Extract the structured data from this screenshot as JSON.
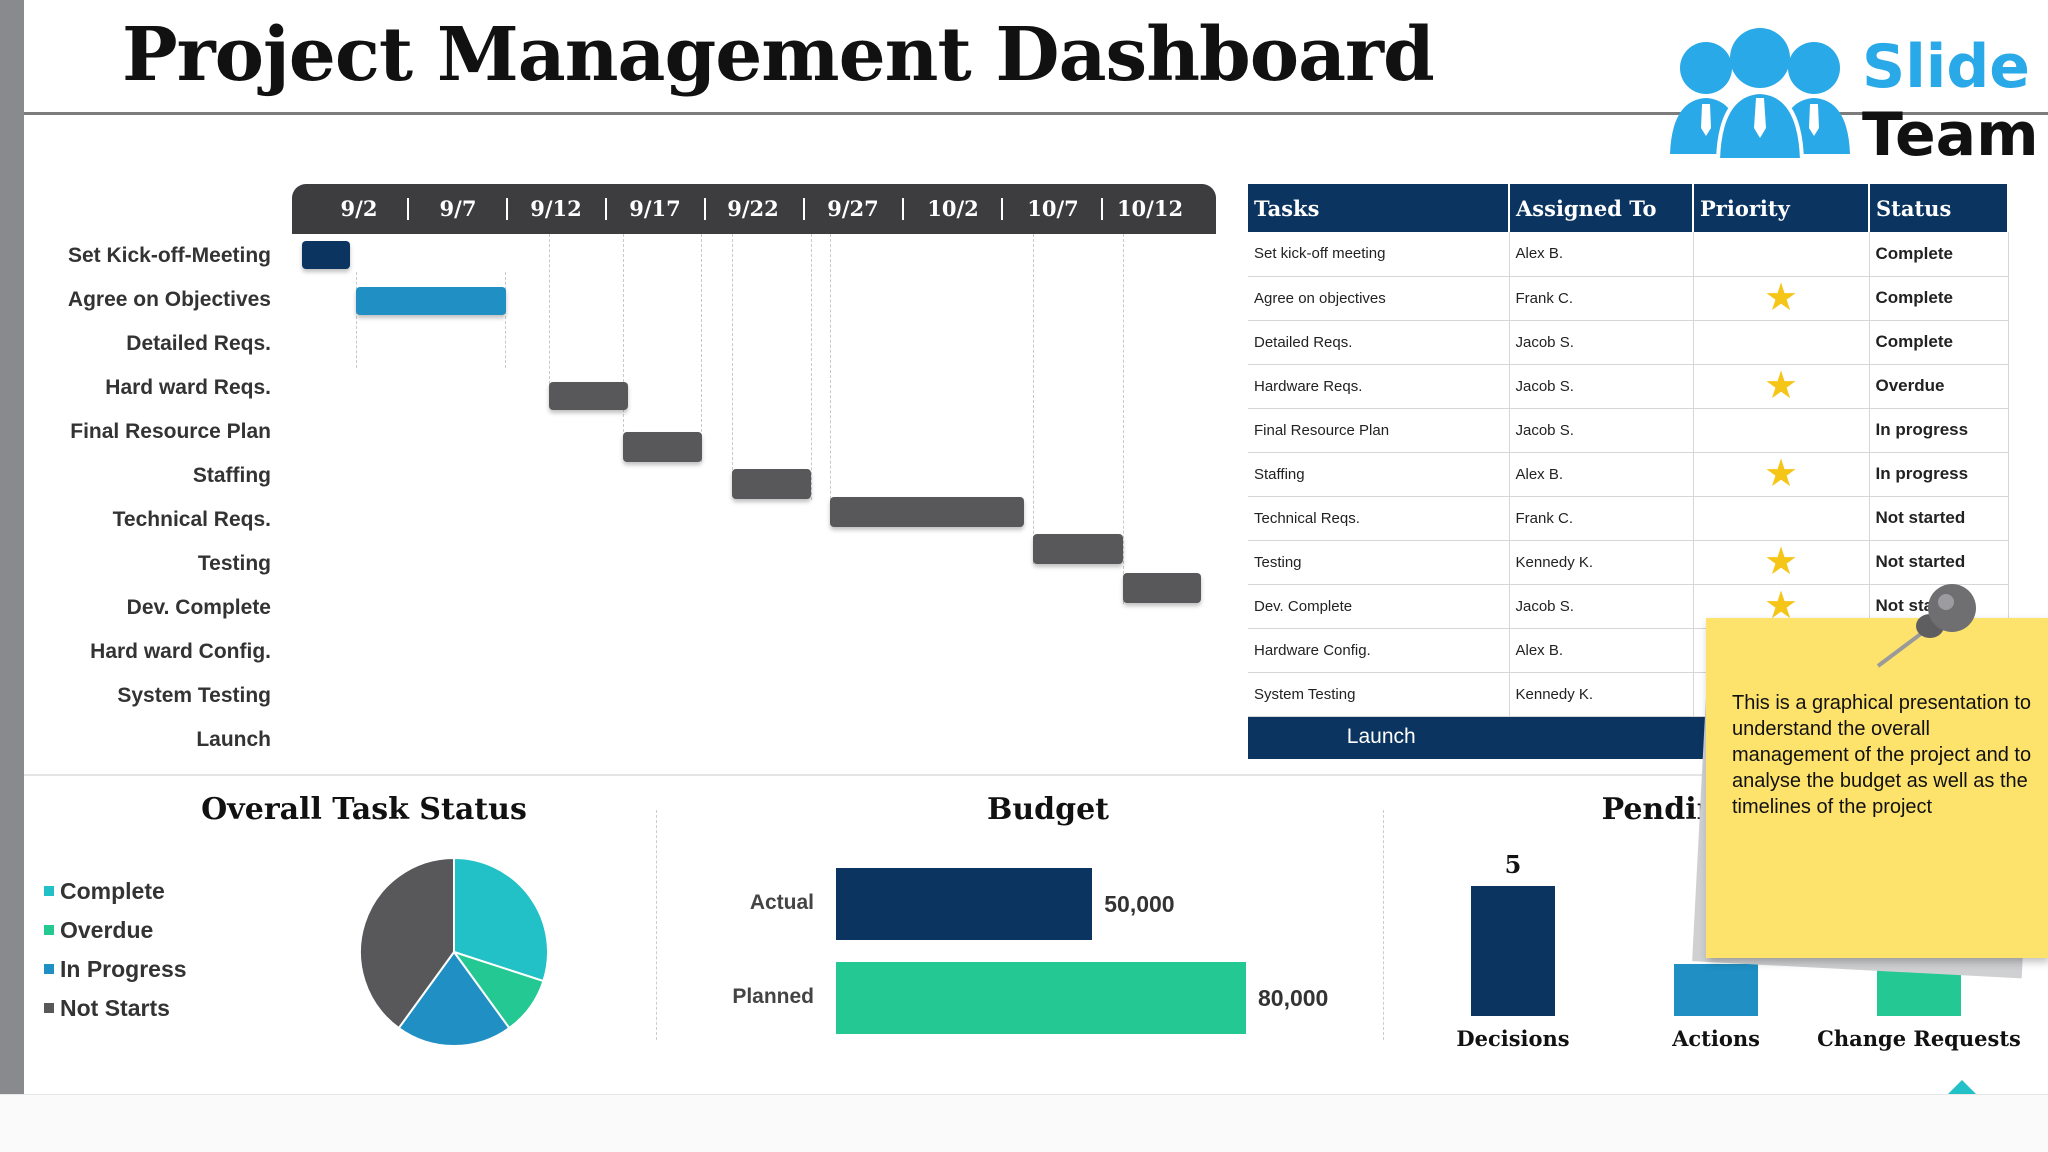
{
  "title": "Project Management Dashboard",
  "logo": {
    "line1": "Slide",
    "line2": "Team"
  },
  "gantt": {
    "dates": [
      "9/2",
      "9/7",
      "9/12",
      "9/17",
      "9/22",
      "9/27",
      "10/2",
      "10/7",
      "10/12"
    ],
    "tasks": [
      "Set Kick-off-Meeting",
      "Agree on Objectives",
      "Detailed Reqs.",
      "Hard ward Reqs.",
      "Final Resource Plan",
      "Staffing",
      "Technical Reqs.",
      "Testing",
      "Dev. Complete",
      "Hard ward Config.",
      "System Testing",
      "Launch"
    ]
  },
  "table": {
    "headers": [
      "Tasks",
      "Assigned To",
      "Priority",
      "Status"
    ],
    "rows": [
      {
        "task": "Set kick-off meeting",
        "assigned": "Alex B.",
        "priority": "",
        "status": "Complete"
      },
      {
        "task": "Agree on objectives",
        "assigned": "Frank C.",
        "priority": "★",
        "status": "Complete"
      },
      {
        "task": "Detailed Reqs.",
        "assigned": "Jacob S.",
        "priority": "",
        "status": "Complete"
      },
      {
        "task": "Hardware Reqs.",
        "assigned": "Jacob S.",
        "priority": "★",
        "status": "Overdue"
      },
      {
        "task": "Final Resource Plan",
        "assigned": "Jacob S.",
        "priority": "",
        "status": "In progress"
      },
      {
        "task": "Staffing",
        "assigned": "Alex B.",
        "priority": "★",
        "status": "In progress"
      },
      {
        "task": "Technical Reqs.",
        "assigned": "Frank C.",
        "priority": "",
        "status": "Not started"
      },
      {
        "task": "Testing",
        "assigned": "Kennedy K.",
        "priority": "★",
        "status": "Not started"
      },
      {
        "task": "Dev. Complete",
        "assigned": "Jacob S.",
        "priority": "★",
        "status": "Not sta"
      },
      {
        "task": "Hardware Config.",
        "assigned": "Alex B.",
        "priority": "",
        "status": ""
      },
      {
        "task": "System Testing",
        "assigned": "Kennedy K.",
        "priority": "",
        "status": ""
      }
    ],
    "launch": "Launch"
  },
  "task_status": {
    "title": "Overall Task Status",
    "legend": [
      "Complete",
      "Overdue",
      "In Progress",
      "Not Starts"
    ]
  },
  "budget": {
    "title": "Budget"
  },
  "pending": {
    "title": "Pendin"
  },
  "note": {
    "text": "This is a graphical presentation to understand the overall management of the project and to analyse the budget as well as the timelines of the project"
  },
  "colors": {
    "navy": "#0b3560",
    "blue": "#1f8fc4",
    "teal": "#22c0c7",
    "green": "#23c893",
    "gray": "#58585b",
    "star": "#f5c518",
    "note": "#fde36b"
  },
  "chart_data": [
    {
      "type": "pie",
      "title": "Overall Task Status",
      "categories": [
        "Complete",
        "Overdue",
        "In Progress",
        "Not Starts"
      ],
      "values": [
        3,
        1,
        2,
        4
      ],
      "colors": [
        "#22c0c7",
        "#23c893",
        "#1f8fc4",
        "#58585b"
      ]
    },
    {
      "type": "bar",
      "orientation": "horizontal",
      "title": "Budget",
      "categories": [
        "Actual",
        "Planned"
      ],
      "values": [
        50000,
        80000
      ],
      "value_labels": [
        "50,000",
        "80,000"
      ],
      "colors": [
        "#0b3560",
        "#23c893"
      ]
    },
    {
      "type": "bar",
      "title": "Pendin",
      "categories": [
        "Decisions",
        "Actions",
        "Change Requests"
      ],
      "values": [
        5,
        2,
        2
      ],
      "value_labels": [
        "5",
        "2",
        ""
      ],
      "colors": [
        "#0b3560",
        "#1f8fc4",
        "#23c893"
      ]
    }
  ]
}
